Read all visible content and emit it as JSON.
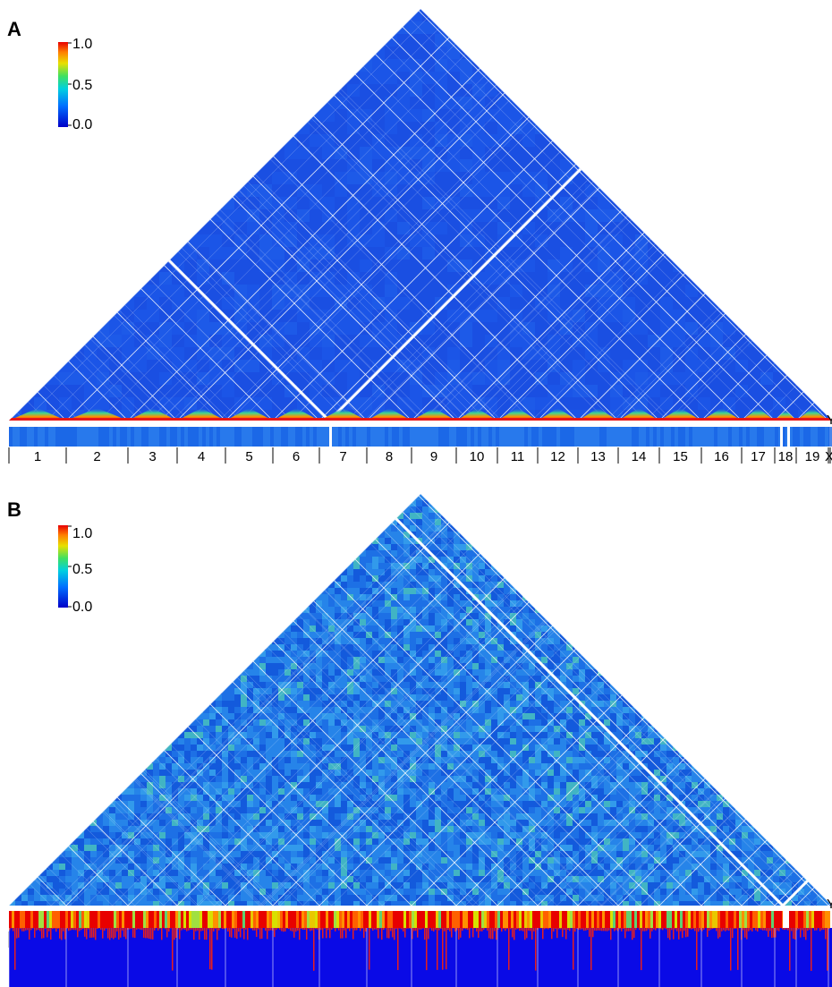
{
  "panels": [
    {
      "letter": "A",
      "colorbar_ticks": [
        "1.0",
        "0.5",
        "0.0"
      ],
      "style": "low"
    },
    {
      "letter": "B",
      "colorbar_ticks": [
        "1.0",
        "0.5",
        "0.0"
      ],
      "style": "high"
    }
  ],
  "chromosomes": [
    "1",
    "2",
    "3",
    "4",
    "5",
    "6",
    "7",
    "8",
    "9",
    "10",
    "11",
    "12",
    "13",
    "14",
    "15",
    "16",
    "17",
    "18",
    "19",
    "X",
    "Y"
  ],
  "colors": {
    "low_blue": "#1a50e6",
    "mid_blue": "#1f7ae8",
    "grid_line": "#ffffff",
    "strip_blue": "#1e6fe8",
    "hist_blue": "#0a0ae6",
    "hist_red": "#e61e1e"
  }
}
